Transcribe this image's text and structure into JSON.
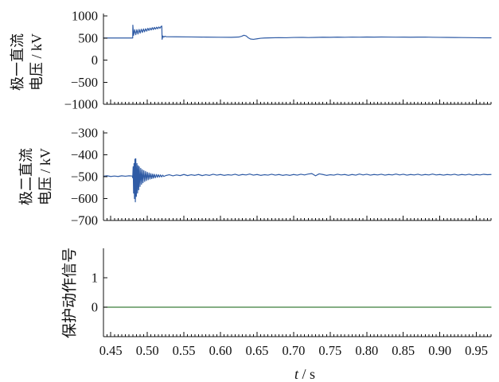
{
  "chart_data": [
    {
      "type": "line",
      "ylabel": [
        "极一直流",
        "电压 / kV"
      ],
      "xlim": [
        0.44,
        0.97
      ],
      "ylim": [
        -1000,
        1000
      ],
      "xticks": [
        0.45,
        0.5,
        0.55,
        0.6,
        0.65,
        0.7,
        0.75,
        0.8,
        0.85,
        0.9,
        0.95
      ],
      "yticks": [
        1000,
        500,
        0,
        -500,
        -1000
      ],
      "ytick_labels": [
        "1000",
        "500",
        "0",
        "−500",
        "−1000"
      ],
      "grid": false,
      "series": [
        {
          "color": "#2f5ba5",
          "points": [
            [
              0.44,
              500
            ],
            [
              0.4798,
              500
            ],
            [
              0.48,
              500
            ],
            [
              0.4802,
              790
            ],
            [
              0.4812,
              560
            ],
            [
              0.4827,
              690
            ],
            [
              0.4842,
              575
            ],
            [
              0.4857,
              690
            ],
            [
              0.4872,
              590
            ],
            [
              0.4887,
              695
            ],
            [
              0.4902,
              610
            ],
            [
              0.4917,
              700
            ],
            [
              0.4932,
              625
            ],
            [
              0.4947,
              705
            ],
            [
              0.4962,
              640
            ],
            [
              0.4977,
              710
            ],
            [
              0.4992,
              655
            ],
            [
              0.5007,
              720
            ],
            [
              0.5022,
              670
            ],
            [
              0.5037,
              725
            ],
            [
              0.5052,
              680
            ],
            [
              0.5067,
              735
            ],
            [
              0.5082,
              690
            ],
            [
              0.5097,
              740
            ],
            [
              0.5112,
              700
            ],
            [
              0.5127,
              745
            ],
            [
              0.5142,
              710
            ],
            [
              0.5157,
              750
            ],
            [
              0.5172,
              720
            ],
            [
              0.5187,
              760
            ],
            [
              0.5198,
              770
            ],
            [
              0.5202,
              470
            ],
            [
              0.5212,
              545
            ],
            [
              0.5225,
              520
            ],
            [
              0.524,
              540
            ],
            [
              0.526,
              528
            ],
            [
              0.54,
              527
            ],
            [
              0.56,
              524
            ],
            [
              0.58,
              520
            ],
            [
              0.6,
              517
            ],
            [
              0.615,
              516
            ],
            [
              0.625,
              522
            ],
            [
              0.629,
              540
            ],
            [
              0.632,
              562
            ],
            [
              0.635,
              548
            ],
            [
              0.638,
              505
            ],
            [
              0.641,
              478
            ],
            [
              0.645,
              470
            ],
            [
              0.65,
              482
            ],
            [
              0.655,
              494
            ],
            [
              0.66,
              500
            ],
            [
              0.67,
              504
            ],
            [
              0.68,
              508
            ],
            [
              0.69,
              506
            ],
            [
              0.7,
              512
            ],
            [
              0.71,
              515
            ],
            [
              0.72,
              510
            ],
            [
              0.73,
              514
            ],
            [
              0.74,
              518
            ],
            [
              0.75,
              516
            ],
            [
              0.76,
              520
            ],
            [
              0.77,
              517
            ],
            [
              0.78,
              521
            ],
            [
              0.79,
              519
            ],
            [
              0.8,
              522
            ],
            [
              0.81,
              520
            ],
            [
              0.82,
              523
            ],
            [
              0.83,
              521
            ],
            [
              0.84,
              519
            ],
            [
              0.85,
              521
            ],
            [
              0.86,
              518
            ],
            [
              0.87,
              520
            ],
            [
              0.88,
              521
            ],
            [
              0.89,
              517
            ],
            [
              0.9,
              515
            ],
            [
              0.91,
              514
            ],
            [
              0.92,
              511
            ],
            [
              0.93,
              510
            ],
            [
              0.94,
              508
            ],
            [
              0.95,
              506
            ],
            [
              0.96,
              505
            ],
            [
              0.97,
              504
            ]
          ]
        }
      ]
    },
    {
      "type": "line",
      "ylabel": [
        "极二直流",
        "电压 / kV"
      ],
      "xlim": [
        0.44,
        0.97
      ],
      "ylim": [
        -700,
        -300
      ],
      "xticks": [
        0.45,
        0.5,
        0.55,
        0.6,
        0.65,
        0.7,
        0.75,
        0.8,
        0.85,
        0.9,
        0.95
      ],
      "yticks": [
        -300,
        -400,
        -500,
        -600,
        -700
      ],
      "ytick_labels": [
        "−300",
        "−400",
        "−500",
        "−600",
        "−700"
      ],
      "grid": false,
      "series": [
        {
          "color": "#2f5ba5",
          "points": [
            [
              0.44,
              -498
            ],
            [
              0.445,
              -496
            ],
            [
              0.45,
              -499
            ],
            [
              0.455,
              -497
            ],
            [
              0.46,
              -499
            ],
            [
              0.465,
              -496
            ],
            [
              0.47,
              -498
            ],
            [
              0.475,
              -496
            ],
            [
              0.4795,
              -497
            ],
            [
              0.48,
              -505
            ],
            [
              0.4806,
              -455
            ],
            [
              0.4812,
              -575
            ],
            [
              0.4818,
              -440
            ],
            [
              0.4824,
              -600
            ],
            [
              0.483,
              -420
            ],
            [
              0.4836,
              -615
            ],
            [
              0.4842,
              -418
            ],
            [
              0.485,
              -590
            ],
            [
              0.4858,
              -440
            ],
            [
              0.4866,
              -575
            ],
            [
              0.4874,
              -450
            ],
            [
              0.4882,
              -560
            ],
            [
              0.489,
              -455
            ],
            [
              0.49,
              -545
            ],
            [
              0.491,
              -462
            ],
            [
              0.492,
              -535
            ],
            [
              0.493,
              -468
            ],
            [
              0.494,
              -528
            ],
            [
              0.4952,
              -472
            ],
            [
              0.4964,
              -522
            ],
            [
              0.4976,
              -476
            ],
            [
              0.4988,
              -518
            ],
            [
              0.5,
              -480
            ],
            [
              0.5012,
              -514
            ],
            [
              0.5024,
              -483
            ],
            [
              0.5036,
              -511
            ],
            [
              0.5048,
              -486
            ],
            [
              0.506,
              -509
            ],
            [
              0.5072,
              -488
            ],
            [
              0.5084,
              -507
            ],
            [
              0.5096,
              -489
            ],
            [
              0.511,
              -505
            ],
            [
              0.5124,
              -490
            ],
            [
              0.5138,
              -503
            ],
            [
              0.5152,
              -491
            ],
            [
              0.5166,
              -502
            ],
            [
              0.518,
              -492
            ],
            [
              0.5195,
              -501
            ],
            [
              0.521,
              -493
            ],
            [
              0.5225,
              -499
            ],
            [
              0.525,
              -495
            ],
            [
              0.53,
              -491
            ],
            [
              0.535,
              -496
            ],
            [
              0.54,
              -492
            ],
            [
              0.545,
              -495
            ],
            [
              0.55,
              -490
            ],
            [
              0.555,
              -495
            ],
            [
              0.56,
              -491
            ],
            [
              0.565,
              -494
            ],
            [
              0.57,
              -490
            ],
            [
              0.575,
              -495
            ],
            [
              0.58,
              -491
            ],
            [
              0.585,
              -494
            ],
            [
              0.59,
              -489
            ],
            [
              0.595,
              -493
            ],
            [
              0.6,
              -490
            ],
            [
              0.605,
              -494
            ],
            [
              0.61,
              -491
            ],
            [
              0.615,
              -493
            ],
            [
              0.62,
              -489
            ],
            [
              0.625,
              -494
            ],
            [
              0.63,
              -490
            ],
            [
              0.635,
              -492
            ],
            [
              0.64,
              -488
            ],
            [
              0.645,
              -493
            ],
            [
              0.65,
              -490
            ],
            [
              0.655,
              -494
            ],
            [
              0.66,
              -491
            ],
            [
              0.665,
              -493
            ],
            [
              0.67,
              -489
            ],
            [
              0.675,
              -493
            ],
            [
              0.68,
              -490
            ],
            [
              0.685,
              -494
            ],
            [
              0.69,
              -491
            ],
            [
              0.695,
              -494
            ],
            [
              0.7,
              -490
            ],
            [
              0.705,
              -493
            ],
            [
              0.71,
              -489
            ],
            [
              0.715,
              -492
            ],
            [
              0.72,
              -488
            ],
            [
              0.725,
              -486
            ],
            [
              0.73,
              -496
            ],
            [
              0.735,
              -487
            ],
            [
              0.74,
              -490
            ],
            [
              0.745,
              -494
            ],
            [
              0.75,
              -491
            ],
            [
              0.755,
              -493
            ],
            [
              0.76,
              -489
            ],
            [
              0.765,
              -492
            ],
            [
              0.77,
              -490
            ],
            [
              0.775,
              -494
            ],
            [
              0.78,
              -490
            ],
            [
              0.785,
              -493
            ],
            [
              0.79,
              -488
            ],
            [
              0.795,
              -492
            ],
            [
              0.8,
              -489
            ],
            [
              0.805,
              -493
            ],
            [
              0.81,
              -490
            ],
            [
              0.815,
              -492
            ],
            [
              0.82,
              -489
            ],
            [
              0.825,
              -493
            ],
            [
              0.83,
              -490
            ],
            [
              0.835,
              -492
            ],
            [
              0.84,
              -488
            ],
            [
              0.845,
              -492
            ],
            [
              0.85,
              -489
            ],
            [
              0.855,
              -493
            ],
            [
              0.86,
              -490
            ],
            [
              0.865,
              -492
            ],
            [
              0.87,
              -489
            ],
            [
              0.875,
              -493
            ],
            [
              0.88,
              -490
            ],
            [
              0.885,
              -492
            ],
            [
              0.89,
              -488
            ],
            [
              0.895,
              -492
            ],
            [
              0.9,
              -490
            ],
            [
              0.905,
              -493
            ],
            [
              0.91,
              -490
            ],
            [
              0.915,
              -492
            ],
            [
              0.92,
              -489
            ],
            [
              0.925,
              -493
            ],
            [
              0.93,
              -490
            ],
            [
              0.935,
              -492
            ],
            [
              0.94,
              -489
            ],
            [
              0.945,
              -493
            ],
            [
              0.95,
              -490
            ],
            [
              0.955,
              -492
            ],
            [
              0.96,
              -489
            ],
            [
              0.965,
              -491
            ],
            [
              0.97,
              -490
            ]
          ]
        }
      ]
    },
    {
      "type": "line",
      "ylabel": [
        "保护动作信号"
      ],
      "xlim": [
        0.44,
        0.97
      ],
      "ylim": [
        -1,
        2
      ],
      "xticks": [
        0.45,
        0.5,
        0.55,
        0.6,
        0.65,
        0.7,
        0.75,
        0.8,
        0.85,
        0.9,
        0.95
      ],
      "xtick_labels": [
        "0.45",
        "0.50",
        "0.55",
        "0.60",
        "0.65",
        "0.70",
        "0.75",
        "0.80",
        "0.85",
        "0.90",
        "0.95"
      ],
      "xlabel": {
        "var": "t",
        "unit": " / s"
      },
      "yticks": [
        1,
        0
      ],
      "ytick_labels": [
        "1",
        "0"
      ],
      "grid": false,
      "series": [
        {
          "color": "#3c7d3a",
          "points": [
            [
              0.44,
              0
            ],
            [
              0.97,
              0
            ]
          ]
        }
      ]
    }
  ]
}
